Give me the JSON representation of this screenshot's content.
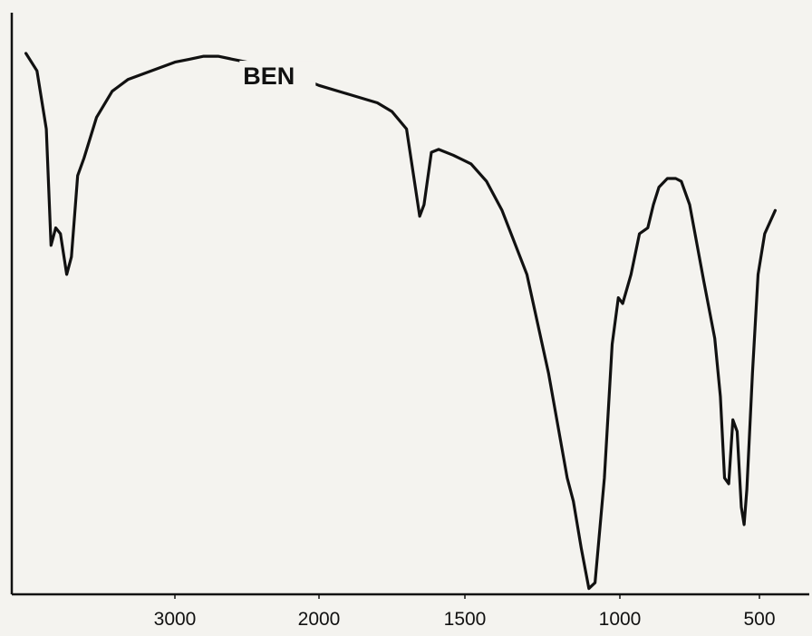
{
  "chart_data": {
    "type": "line",
    "title": "",
    "xlabel": "",
    "ylabel": "",
    "x_reversed": true,
    "xlim": [
      4000,
      400
    ],
    "ylim": [
      0,
      100
    ],
    "xticks": [
      3000,
      2000,
      1500,
      1000,
      500
    ],
    "xtick_labels": [
      "3000",
      "2000",
      "1500",
      "1000",
      "500"
    ],
    "grid": false,
    "series": [
      {
        "name": "BEN",
        "color": "#111111",
        "points": [
          [
            3950,
            93
          ],
          [
            3880,
            90
          ],
          [
            3820,
            80
          ],
          [
            3790,
            60
          ],
          [
            3760,
            63
          ],
          [
            3730,
            62
          ],
          [
            3690,
            55
          ],
          [
            3660,
            58
          ],
          [
            3620,
            72
          ],
          [
            3580,
            75
          ],
          [
            3500,
            82
          ],
          [
            3400,
            86.5
          ],
          [
            3300,
            88.5
          ],
          [
            3200,
            89.5
          ],
          [
            3100,
            90.5
          ],
          [
            3000,
            91.5
          ],
          [
            2900,
            92
          ],
          [
            2800,
            92.5
          ],
          [
            2700,
            92.5
          ],
          [
            2600,
            92
          ],
          [
            2500,
            91.5
          ],
          [
            2400,
            91
          ],
          [
            2300,
            90.5
          ],
          [
            2200,
            89.5
          ],
          [
            2100,
            88.5
          ],
          [
            2000,
            87.5
          ],
          [
            1900,
            86
          ],
          [
            1800,
            84.5
          ],
          [
            1750,
            83
          ],
          [
            1700,
            80
          ],
          [
            1670,
            70
          ],
          [
            1655,
            65
          ],
          [
            1640,
            67
          ],
          [
            1615,
            76
          ],
          [
            1590,
            76.5
          ],
          [
            1540,
            75.5
          ],
          [
            1480,
            74
          ],
          [
            1430,
            71
          ],
          [
            1380,
            66
          ],
          [
            1300,
            55
          ],
          [
            1230,
            38
          ],
          [
            1170,
            20
          ],
          [
            1150,
            16
          ],
          [
            1125,
            8
          ],
          [
            1100,
            1
          ],
          [
            1080,
            2
          ],
          [
            1050,
            20
          ],
          [
            1025,
            43
          ],
          [
            1005,
            51
          ],
          [
            990,
            50
          ],
          [
            960,
            55
          ],
          [
            930,
            62
          ],
          [
            900,
            63
          ],
          [
            880,
            67
          ],
          [
            860,
            70
          ],
          [
            830,
            71.5
          ],
          [
            800,
            71.5
          ],
          [
            780,
            71
          ],
          [
            750,
            67
          ],
          [
            700,
            54
          ],
          [
            660,
            44
          ],
          [
            640,
            34
          ],
          [
            625,
            20
          ],
          [
            610,
            19
          ],
          [
            595,
            30
          ],
          [
            580,
            28
          ],
          [
            565,
            15
          ],
          [
            555,
            12
          ],
          [
            545,
            18
          ],
          [
            525,
            38
          ],
          [
            505,
            55
          ],
          [
            490,
            62
          ],
          [
            470,
            66
          ]
        ]
      }
    ]
  }
}
